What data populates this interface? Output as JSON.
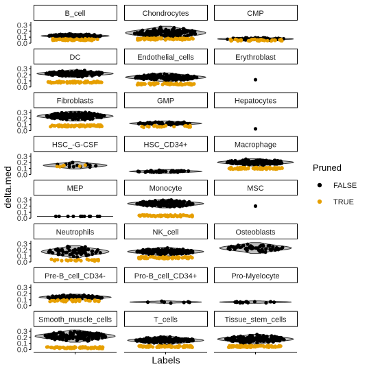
{
  "chart_data": {
    "type": "violin",
    "xlabel": "Labels",
    "ylabel": "delta.med",
    "ylim": [
      0,
      0.35
    ],
    "y_ticks": [
      0.0,
      0.1,
      0.2,
      0.3
    ],
    "y_tick_labels": [
      "0.0",
      "0.1",
      "0.2",
      "0.3"
    ],
    "grid": false,
    "legend": {
      "title": "Pruned",
      "position": "right",
      "entries": [
        {
          "label": "FALSE",
          "color": "#000000"
        },
        {
          "label": "TRUE",
          "color": "#E69F00"
        }
      ]
    },
    "colors": {
      "pruned_false": "#000000",
      "pruned_true": "#E69F00",
      "violin_fill": "#BEBEBE"
    },
    "panels": [
      {
        "label": "B_cell",
        "center": 0.12,
        "half_range": 0.04,
        "width": 0.8,
        "density": 1.0,
        "true_level": 0.06
      },
      {
        "label": "Chondrocytes",
        "center": 0.17,
        "half_range": 0.11,
        "width": 0.95,
        "density": 1.0,
        "true_level": 0.07
      },
      {
        "label": "CMP",
        "center": 0.07,
        "half_range": 0.025,
        "width": 0.9,
        "density": 0.5,
        "true_level": 0.05
      },
      {
        "label": "DC",
        "center": 0.22,
        "half_range": 0.06,
        "width": 0.9,
        "density": 1.0,
        "true_level": 0.08
      },
      {
        "label": "Endothelial_cells",
        "center": 0.16,
        "half_range": 0.07,
        "width": 0.95,
        "density": 1.0,
        "true_level": 0.05
      },
      {
        "label": "Erythroblast",
        "center": 0.12,
        "half_range": 0.0,
        "width": 0.0,
        "density": 0.0,
        "true_level": null,
        "single": true
      },
      {
        "label": "Fibroblasts",
        "center": 0.24,
        "half_range": 0.08,
        "width": 0.9,
        "density": 1.0,
        "true_level": 0.08
      },
      {
        "label": "GMP",
        "center": 0.12,
        "half_range": 0.04,
        "width": 0.85,
        "density": 0.3,
        "true_level": 0.07
      },
      {
        "label": "Hepatocytes",
        "center": 0.03,
        "half_range": 0.0,
        "width": 0.0,
        "density": 0.0,
        "true_level": null,
        "single": true
      },
      {
        "label": "HSC_-G-CSF",
        "center": 0.15,
        "half_range": 0.06,
        "width": 0.75,
        "density": 0.08,
        "true_level": 0.14
      },
      {
        "label": "HSC_CD34+",
        "center": 0.05,
        "half_range": 0.03,
        "width": 0.85,
        "density": 0.25,
        "true_level": null
      },
      {
        "label": "Macrophage",
        "center": 0.2,
        "half_range": 0.06,
        "width": 0.9,
        "density": 1.0,
        "true_level": 0.1
      },
      {
        "label": "MEP",
        "center": 0.03,
        "half_range": 0.0,
        "width": 0.9,
        "density": 0.08,
        "true_level": null
      },
      {
        "label": "Monocyte",
        "center": 0.24,
        "half_range": 0.07,
        "width": 0.9,
        "density": 1.0,
        "true_level": 0.04
      },
      {
        "label": "MSC",
        "center": 0.2,
        "half_range": 0.0,
        "width": 0.0,
        "density": 0.0,
        "true_level": null,
        "single": true
      },
      {
        "label": "Neutrophils",
        "center": 0.17,
        "half_range": 0.1,
        "width": 0.8,
        "density": 0.35,
        "true_level": 0.03
      },
      {
        "label": "NK_cell",
        "center": 0.17,
        "half_range": 0.07,
        "width": 0.9,
        "density": 1.0,
        "true_level": 0.07
      },
      {
        "label": "Osteoblasts",
        "center": 0.23,
        "half_range": 0.09,
        "width": 0.85,
        "density": 0.35,
        "true_level": null
      },
      {
        "label": "Pre-B_cell_CD34-",
        "center": 0.14,
        "half_range": 0.05,
        "width": 0.85,
        "density": 0.5,
        "true_level": 0.08
      },
      {
        "label": "Pro-B_cell_CD34+",
        "center": 0.06,
        "half_range": 0.02,
        "width": 0.85,
        "density": 0.05,
        "true_level": null
      },
      {
        "label": "Pro-Myelocyte",
        "center": 0.06,
        "half_range": 0.02,
        "width": 0.85,
        "density": 0.08,
        "true_level": null
      },
      {
        "label": "Smooth_muscle_cells",
        "center": 0.22,
        "half_range": 0.1,
        "width": 0.95,
        "density": 1.0,
        "true_level": 0.03
      },
      {
        "label": "T_cells",
        "center": 0.15,
        "half_range": 0.07,
        "width": 0.9,
        "density": 1.0,
        "true_level": 0.05
      },
      {
        "label": "Tissue_stem_cells",
        "center": 0.17,
        "half_range": 0.08,
        "width": 0.9,
        "density": 1.0,
        "true_level": 0.05
      }
    ]
  }
}
